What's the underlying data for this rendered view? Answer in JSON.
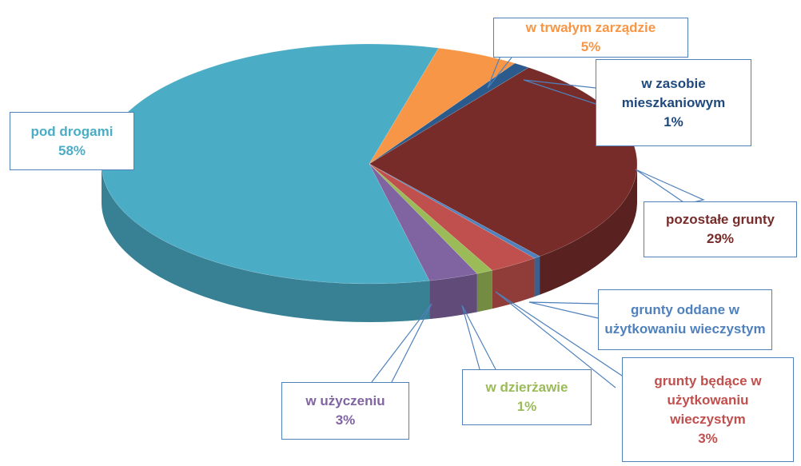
{
  "chart_data": {
    "type": "pie",
    "categories": [
      "pod drogami",
      "w trwałym zarządzie",
      "w zasobie mieszkaniowym",
      "pozostałe grunty",
      "grunty oddane w użytkowaniu wieczystym",
      "grunty będące w użytkowaniu wieczystym",
      "w dzierżawie",
      "w użyczeniu"
    ],
    "values": [
      58,
      5,
      1,
      29,
      0.4,
      3,
      1,
      3
    ],
    "value_labels": [
      "58%",
      "5%",
      "1%",
      "29%",
      null,
      "3%",
      "1%",
      "3%"
    ],
    "colors": [
      "#4bacc6",
      "#f79646",
      "#2b5b8c",
      "#772c2a",
      "#4f81bd",
      "#c0504d",
      "#9bbb59",
      "#8064a2"
    ]
  }
}
